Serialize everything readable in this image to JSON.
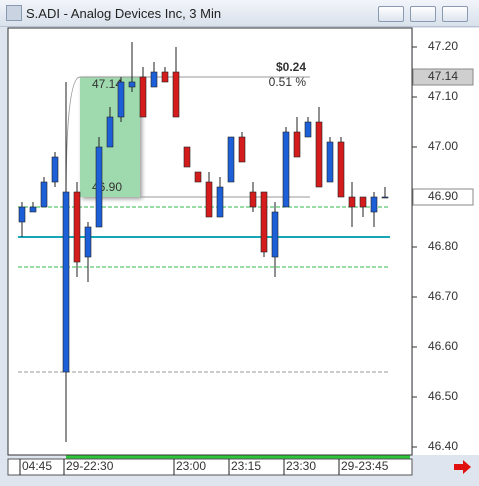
{
  "window_title": "S.ADI - Analog Devices Inc, 3 Min",
  "chart_data": {
    "type": "candlestick",
    "categories": [
      "04:45",
      null,
      null,
      null,
      "29-22:30",
      null,
      null,
      null,
      null,
      null,
      null,
      null,
      null,
      null,
      "23:00",
      null,
      null,
      null,
      null,
      "23:15",
      null,
      null,
      null,
      null,
      "23:30",
      null,
      null,
      null,
      null,
      "29-23:45",
      null,
      null,
      null,
      null
    ],
    "open": [
      46.85,
      46.87,
      46.88,
      46.93,
      46.55,
      46.91,
      46.78,
      46.84,
      47.0,
      47.06,
      47.12,
      47.14,
      47.12,
      47.15,
      47.15,
      47.0,
      46.95,
      46.93,
      46.86,
      46.93,
      47.02,
      46.91,
      46.91,
      46.78,
      46.88,
      47.03,
      47.02,
      47.05,
      46.93,
      47.01,
      46.9,
      46.9,
      46.87,
      46.9
    ],
    "high": [
      46.89,
      46.89,
      46.94,
      46.99,
      47.13,
      46.93,
      46.85,
      47.02,
      47.08,
      47.14,
      47.21,
      47.16,
      47.17,
      47.16,
      47.2,
      47.0,
      46.95,
      46.95,
      46.94,
      47.02,
      47.03,
      46.93,
      46.91,
      46.89,
      47.04,
      47.06,
      47.06,
      47.08,
      47.02,
      47.02,
      46.93,
      46.9,
      46.91,
      46.92
    ],
    "low": [
      46.82,
      46.87,
      46.88,
      46.92,
      46.41,
      46.74,
      46.73,
      46.84,
      47.0,
      47.05,
      47.11,
      47.06,
      47.12,
      47.13,
      47.06,
      46.96,
      46.93,
      46.86,
      46.86,
      46.93,
      46.97,
      46.87,
      46.78,
      46.74,
      46.88,
      46.98,
      47.02,
      46.92,
      46.93,
      46.9,
      46.84,
      46.86,
      46.84,
      46.9
    ],
    "close": [
      46.88,
      46.88,
      46.93,
      46.98,
      46.91,
      46.77,
      46.84,
      47.0,
      47.06,
      47.13,
      47.13,
      47.06,
      47.15,
      47.13,
      47.06,
      46.96,
      46.93,
      46.86,
      46.92,
      47.02,
      46.97,
      46.88,
      46.79,
      46.87,
      47.03,
      46.98,
      47.05,
      46.92,
      47.01,
      46.9,
      46.88,
      46.88,
      46.9,
      46.9
    ],
    "up_color": "#1c5fd6",
    "down_color": "#d41c1c",
    "ylim": [
      46.384,
      47.238
    ],
    "yticks": [
      {
        "value": 47.2,
        "label": "47.20"
      },
      {
        "value": 47.1,
        "label": "47.10"
      },
      {
        "value": 47.0,
        "label": "47.00"
      },
      {
        "value": 46.9,
        "label": "46.90"
      },
      {
        "value": 46.8,
        "label": "46.80"
      },
      {
        "value": 46.7,
        "label": "46.70"
      },
      {
        "value": 46.6,
        "label": "46.60"
      },
      {
        "value": 46.5,
        "label": "46.50"
      },
      {
        "value": 46.4,
        "label": "46.40"
      }
    ],
    "levels": [
      {
        "value": 46.88,
        "color": "#2db84a",
        "style": "dashed"
      },
      {
        "value": 46.82,
        "color": "#17a6b8",
        "style": "solid"
      },
      {
        "value": 46.76,
        "color": "#2db84a",
        "style": "dashed"
      },
      {
        "value": 46.55,
        "color": "#999999",
        "style": "dashed"
      }
    ],
    "price_markers": [
      {
        "value": 47.14,
        "label": "47.14"
      },
      {
        "value": 46.9,
        "label": "46.90"
      }
    ],
    "measure": {
      "start": {
        "value": 46.9,
        "label": "46.90"
      },
      "end": {
        "value": 47.14,
        "label": "47.14"
      },
      "change": {
        "value": 0.24,
        "label": "$0.24"
      },
      "percent": {
        "value": 0.51,
        "label": "0.51 %"
      }
    }
  }
}
